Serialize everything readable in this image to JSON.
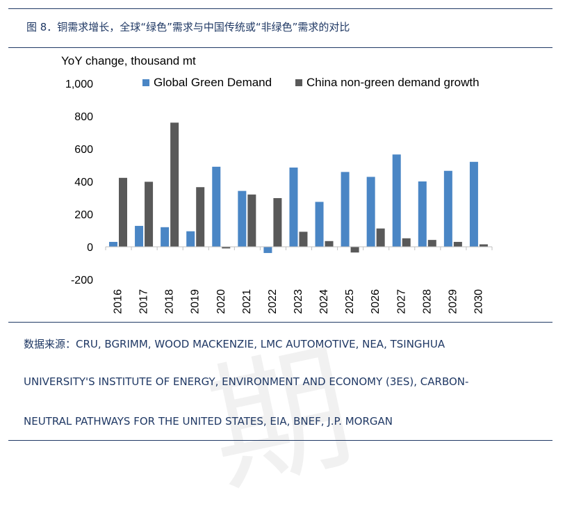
{
  "figure_title": "图 8．铜需求增长，全球“绿色”需求与中国传统或“非绿色”需求的对比",
  "source_lines": [
    "数据来源：CRU, BGRIMM, WOOD MACKENZIE, LMC AUTOMOTIVE, NEA, TSINGHUA",
    "UNIVERSITY'S INSTITUTE OF ENERGY, ENVIRONMENT AND ECONOMY (3ES), CARBON-",
    "NEUTRAL PATHWAYS FOR THE UNITED STATES, EIA, BNEF, J.P. MORGAN"
  ],
  "watermark": "期",
  "chart_data": {
    "type": "bar",
    "ylabel": "YoY change, thousand mt",
    "ylim": [
      -200,
      1000
    ],
    "yticks": [
      -200,
      0,
      200,
      400,
      600,
      800,
      1000
    ],
    "ytick_labels": [
      "-200",
      "0",
      "200",
      "400",
      "600",
      "800",
      "1,000"
    ],
    "categories": [
      "2016",
      "2017",
      "2018",
      "2019",
      "2020",
      "2021",
      "2022",
      "2023",
      "2024",
      "2025",
      "2026",
      "2027",
      "2028",
      "2029",
      "2030"
    ],
    "legend_position": "top",
    "grid": false,
    "series": [
      {
        "name": "Global Green Demand",
        "color": "#4a86c5",
        "values": [
          30,
          128,
          120,
          95,
          490,
          342,
          -38,
          485,
          275,
          458,
          428,
          565,
          400,
          465,
          520
        ]
      },
      {
        "name": "China non-green demand growth",
        "color": "#595959",
        "values": [
          422,
          398,
          760,
          365,
          -10,
          320,
          298,
          92,
          35,
          -35,
          112,
          52,
          42,
          30,
          15
        ]
      }
    ]
  }
}
